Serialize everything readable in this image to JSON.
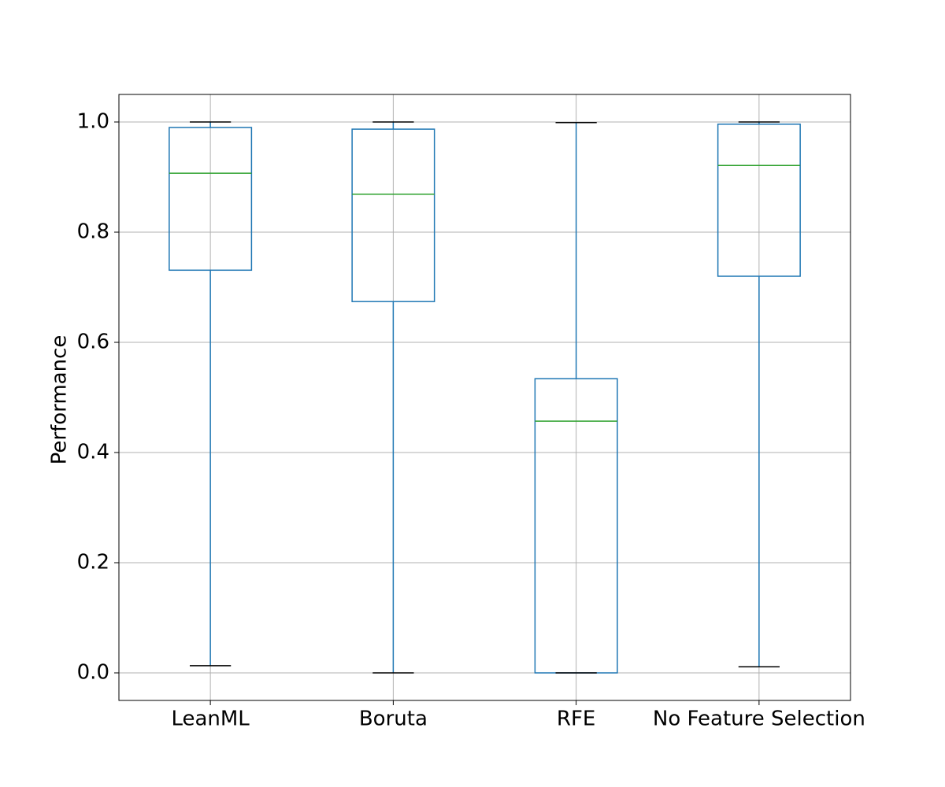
{
  "chart_data": {
    "type": "box",
    "ylabel": "Performance",
    "categories": [
      "LeanML",
      "Boruta",
      "RFE",
      "No Feature Selection"
    ],
    "boxes": [
      {
        "whislo": 0.013,
        "q1": 0.731,
        "med": 0.907,
        "q3": 0.99,
        "whishi": 1.0
      },
      {
        "whislo": 0.0,
        "q1": 0.674,
        "med": 0.869,
        "q3": 0.987,
        "whishi": 1.0
      },
      {
        "whislo": 0.0,
        "q1": 0.0,
        "med": 0.457,
        "q3": 0.534,
        "whishi": 0.999
      },
      {
        "whislo": 0.011,
        "q1": 0.72,
        "med": 0.921,
        "q3": 0.996,
        "whishi": 1.0
      }
    ],
    "box_color": "#1f77b4",
    "median_color": "#2ca02c",
    "cap_color": "#000000",
    "ylim": [
      -0.05,
      1.05
    ],
    "yticks": [
      {
        "value": 0,
        "label": "0.0"
      },
      0.2,
      0.4,
      0.6,
      0.8,
      {
        "value": 1,
        "label": "1.0"
      }
    ],
    "grid": true
  }
}
